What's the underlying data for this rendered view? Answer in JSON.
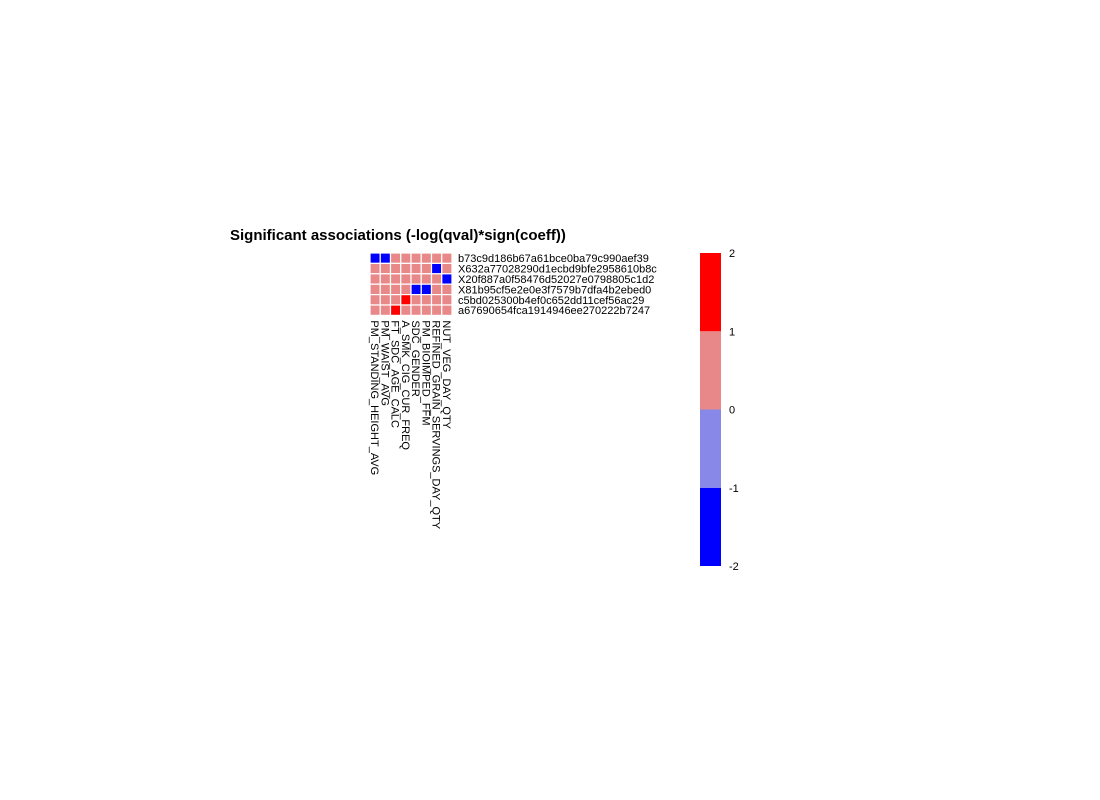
{
  "chart_data": {
    "type": "heatmap",
    "title": "Significant associations (-log(qval)*sign(coeff))",
    "rows": [
      "b73c9d186b67a61bce0ba79c990aef39",
      "X632a77028290d1ecbd9bfe2958610b8c",
      "X20f887a0f58476d52027e0798805c1d2",
      "X81b95cf5e2e0e3f7579b7dfa4b2ebed0",
      "c5bd025300b4ef0c652dd11cef56ac29",
      "a67690654fca1914946ee270222b7247"
    ],
    "columns": [
      "PM_STANDING_HEIGHT_AVG",
      "PM_WAIST_AVG",
      "FT_SDC_AGE_CALC",
      "A_SMK_CIG_CUR_FREQ",
      "SDC_GENDER",
      "PM_BIOIMPED_FFM",
      "REFINED_GRAIN_SERVINGS_DAY_QTY",
      "NUT_VEG_DAY_QTY"
    ],
    "values": [
      [
        -2,
        -2,
        0,
        0,
        0,
        0,
        0,
        0
      ],
      [
        0,
        0,
        0,
        0,
        0,
        0,
        -2,
        0
      ],
      [
        0,
        0,
        0,
        0,
        0,
        0,
        0,
        -2
      ],
      [
        0,
        0,
        0,
        0,
        -2,
        -2,
        0,
        0
      ],
      [
        0,
        0,
        0,
        2,
        0,
        0,
        0,
        0
      ],
      [
        0,
        0,
        2,
        0,
        0,
        0,
        0,
        0
      ]
    ],
    "color_scale": {
      "breaks": [
        -2,
        -1,
        0,
        1,
        2
      ],
      "colors": [
        "#0000ff",
        "#8888e8",
        "#e88888",
        "#ff0000"
      ],
      "ticks": [
        "-2",
        "-1",
        "0",
        "1",
        "2"
      ]
    },
    "cell_border": "#ffffff"
  }
}
